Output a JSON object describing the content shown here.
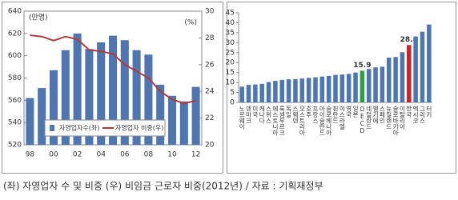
{
  "chart_data": [
    {
      "type": "bar",
      "y_label": "(만명)",
      "y2_label": "(%)",
      "categories": [
        "98",
        null,
        "00",
        null,
        "02",
        null,
        "04",
        null,
        "06",
        null,
        "08",
        null,
        "10",
        null,
        "12"
      ],
      "series": [
        {
          "name": "자영업자수(좌)",
          "type": "bar",
          "color": "#4f76b0",
          "values": [
            562,
            571,
            587,
            605,
            620,
            606,
            612,
            618,
            614,
            605,
            601,
            574,
            564,
            559,
            572
          ]
        },
        {
          "name": "자영업자 비중(우)",
          "type": "line",
          "axis": "y2",
          "color": "#b23a3a",
          "values": [
            28.2,
            28.1,
            27.8,
            28.1,
            27.9,
            27.1,
            27.0,
            26.8,
            26.0,
            25.5,
            25.0,
            24.0,
            23.4,
            23.1,
            23.3
          ]
        }
      ],
      "ylim": [
        520,
        640
      ],
      "yticks": [
        520,
        540,
        560,
        580,
        600,
        620,
        640
      ],
      "y2lim": [
        20,
        30
      ],
      "y2ticks": [
        20,
        22,
        24,
        26,
        28,
        30
      ],
      "legend": "bottom"
    },
    {
      "type": "bar",
      "categories": [
        "노르웨이",
        "덴마크",
        "미국",
        "캐나다",
        "스위스",
        "에스토니아",
        "룩셈부르크",
        "독일",
        "스웨덴",
        "오스트리아",
        "호주",
        "프랑스",
        "아이슬란드",
        "슬로베니아",
        "핀란드",
        "이스라엘",
        "영국",
        "일본",
        "OECD",
        "네덜란드",
        "벨기에",
        "스페인",
        "뉴질랜드",
        "슬로바키아",
        "이탈리아",
        "한국",
        "멕시코",
        "그리스",
        "터키"
      ],
      "values": [
        7.9,
        8.8,
        9.0,
        9.3,
        10.2,
        10.8,
        11.3,
        11.6,
        11.7,
        12.0,
        12.3,
        12.6,
        13.0,
        13.3,
        13.8,
        14.0,
        14.3,
        15.0,
        15.9,
        16.8,
        17.6,
        17.9,
        22.5,
        22.8,
        25.2,
        28.8,
        33.0,
        35.5,
        39.1
      ],
      "color": "#4f76b0",
      "colors": [
        "#4f76b0",
        "#4f76b0",
        "#4f76b0",
        "#4f76b0",
        "#4f76b0",
        "#4f76b0",
        "#4f76b0",
        "#4f76b0",
        "#4f76b0",
        "#4f76b0",
        "#4f76b0",
        "#4f76b0",
        "#4f76b0",
        "#4f76b0",
        "#4f76b0",
        "#4f76b0",
        "#4f76b0",
        "#4f76b0",
        "#2e9e3e",
        "#4f76b0",
        "#4f76b0",
        "#4f76b0",
        "#4f76b0",
        "#4f76b0",
        "#4f76b0",
        "#c0282c",
        "#4f76b0",
        "#4f76b0",
        "#4f76b0"
      ],
      "ylim": [
        0,
        45
      ],
      "yticks": [
        0,
        5,
        10,
        15,
        20,
        25,
        30,
        35,
        40,
        45
      ]
    }
  ],
  "caption": "(좌) 자영업자 수 및 비중 (우) 비임금 근로자 비중(2012년) / 자료 : 기획재정부"
}
